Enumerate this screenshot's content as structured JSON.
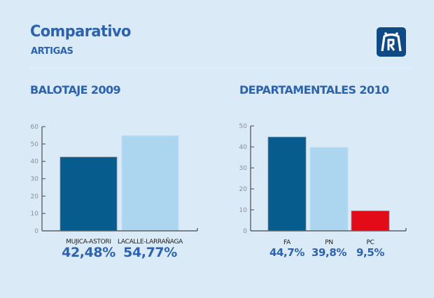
{
  "header": {
    "title": "Comparativo",
    "subtitle": "ARTIGAS",
    "logo_icon": "building-arch-logo-icon"
  },
  "colors": {
    "background": "#daeaf7",
    "heading": "#2d63ad",
    "dark_blue": "#065d8d",
    "light_blue": "#acd5f0",
    "red": "#e20b17",
    "axis": "#5e6065"
  },
  "chart_data": [
    {
      "type": "bar",
      "title": "BALOTAJE 2009",
      "xlabel": "",
      "ylabel": "",
      "ylim": [
        0,
        60
      ],
      "yticks": [
        0,
        10,
        20,
        30,
        40,
        50,
        60
      ],
      "grid": false,
      "categories": [
        "MUJICA-ASTORI",
        "LACALLE-LARRAÑAGA"
      ],
      "values": [
        42.48,
        54.77
      ],
      "value_labels": [
        "42,48%",
        "54,77%"
      ],
      "bar_colors": [
        "#065d8d",
        "#acd5f0"
      ]
    },
    {
      "type": "bar",
      "title": "DEPARTAMENTALES 2010",
      "xlabel": "",
      "ylabel": "",
      "ylim": [
        0,
        50
      ],
      "yticks": [
        0,
        10,
        20,
        30,
        40,
        50
      ],
      "grid": false,
      "categories": [
        "FA",
        "PN",
        "PC"
      ],
      "values": [
        44.7,
        39.8,
        9.5
      ],
      "value_labels": [
        "44,7%",
        "39,8%",
        "9,5%"
      ],
      "bar_colors": [
        "#065d8d",
        "#acd5f0",
        "#e20b17"
      ]
    }
  ]
}
